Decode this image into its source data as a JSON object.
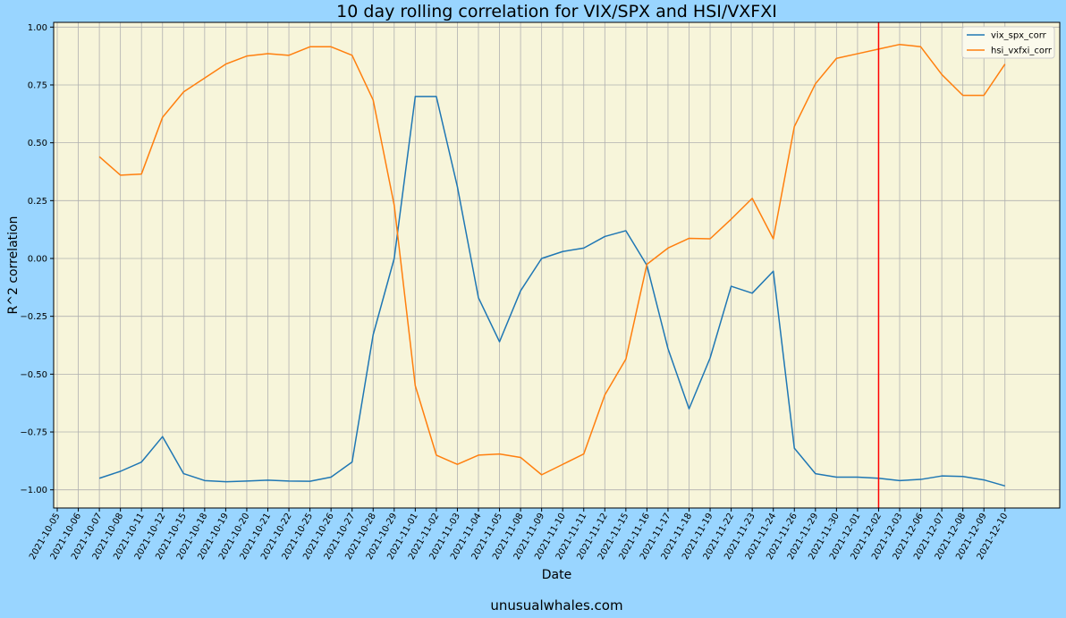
{
  "chart_data": {
    "type": "line",
    "title": "10 day rolling correlation for VIX/SPX and HSI/VXFXI",
    "xlabel": "Date",
    "ylabel": "R^2 correlation",
    "ylim": [
      -1.08,
      1.02
    ],
    "yticks": [
      "1.00",
      "0.75",
      "0.50",
      "0.25",
      "0.00",
      "−0.25",
      "−0.50",
      "−0.75",
      "−1.00"
    ],
    "ytick_values": [
      1.0,
      0.75,
      0.5,
      0.25,
      0.0,
      -0.25,
      -0.5,
      -0.75,
      -1.0
    ],
    "grid": true,
    "legend_position": "top-right",
    "x": [
      "2021-10-05",
      "2021-10-06",
      "2021-10-07",
      "2021-10-08",
      "2021-10-11",
      "2021-10-12",
      "2021-10-15",
      "2021-10-18",
      "2021-10-19",
      "2021-10-20",
      "2021-10-21",
      "2021-10-22",
      "2021-10-25",
      "2021-10-26",
      "2021-10-27",
      "2021-10-28",
      "2021-10-29",
      "2021-11-01",
      "2021-11-02",
      "2021-11-03",
      "2021-11-04",
      "2021-11-05",
      "2021-11-08",
      "2021-11-09",
      "2021-11-10",
      "2021-11-11",
      "2021-11-12",
      "2021-11-15",
      "2021-11-16",
      "2021-11-17",
      "2021-11-18",
      "2021-11-19",
      "2021-11-22",
      "2021-11-23",
      "2021-11-24",
      "2021-11-26",
      "2021-11-29",
      "2021-11-30",
      "2021-12-01",
      "2021-12-02",
      "2021-12-03",
      "2021-12-06",
      "2021-12-07",
      "2021-12-08",
      "2021-12-09",
      "2021-12-10"
    ],
    "series": [
      {
        "name": "vix_spx_corr",
        "color": "#1f77b4",
        "values": [
          null,
          null,
          -0.95,
          -0.92,
          -0.88,
          -0.77,
          -0.93,
          -0.96,
          -0.965,
          -0.962,
          -0.958,
          -0.962,
          -0.963,
          -0.945,
          -0.88,
          -0.33,
          0.0,
          0.7,
          0.7,
          0.31,
          -0.17,
          -0.36,
          -0.14,
          0.0,
          0.03,
          0.045,
          0.095,
          0.12,
          -0.03,
          -0.39,
          -0.65,
          -0.43,
          -0.12,
          -0.15,
          -0.055,
          -0.82,
          -0.93,
          -0.945,
          -0.945,
          -0.95,
          -0.96,
          -0.955,
          -0.94,
          -0.942,
          -0.957,
          -0.983
        ]
      },
      {
        "name": "hsi_vxfxi_corr",
        "color": "#ff7f0e",
        "values": [
          null,
          null,
          0.44,
          0.36,
          0.365,
          0.61,
          0.72,
          0.78,
          0.84,
          0.875,
          0.885,
          0.878,
          0.915,
          0.915,
          0.878,
          0.685,
          0.23,
          -0.55,
          -0.85,
          -0.89,
          -0.85,
          -0.845,
          -0.86,
          -0.935,
          -0.89,
          -0.845,
          -0.59,
          -0.435,
          -0.025,
          0.045,
          0.087,
          0.085,
          0.17,
          0.26,
          0.085,
          0.57,
          0.755,
          0.865,
          0.885,
          0.905,
          0.925,
          0.915,
          0.795,
          0.705,
          0.705,
          0.84
        ]
      }
    ],
    "vline": {
      "date": "2021-12-02",
      "color": "#ff0000"
    }
  },
  "footer": {
    "text": "unusualwhales.com"
  }
}
